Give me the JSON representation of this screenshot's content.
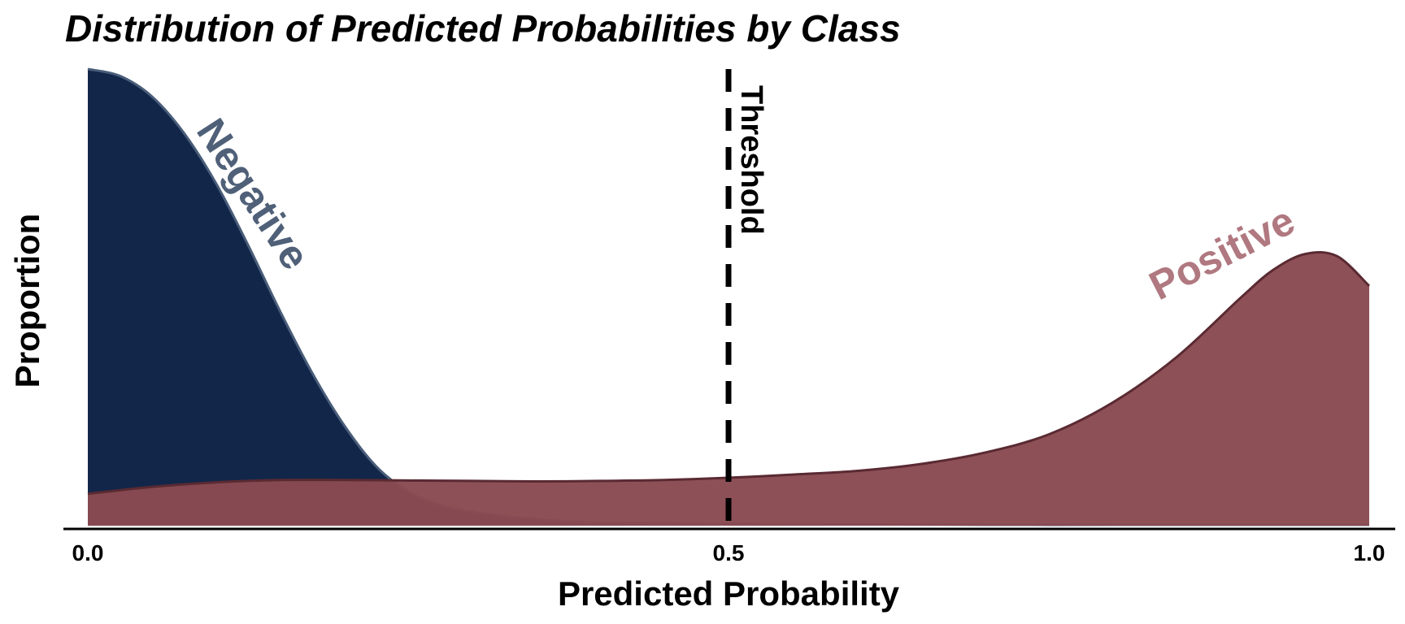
{
  "chart_data": {
    "type": "area",
    "title": "Distribution of Predicted Probabilities by Class",
    "xlabel": "Predicted Probability",
    "ylabel": "Proportion",
    "xlim": [
      0,
      1
    ],
    "ylim": [
      0,
      1
    ],
    "x_ticks": [
      "0.0",
      "0.5",
      "1.0"
    ],
    "grid": false,
    "legend": "none (inline labels)",
    "threshold": {
      "x": 0.5,
      "label": "Threshold",
      "style": "dashed",
      "color": "#000000"
    },
    "series": [
      {
        "name": "Negative",
        "fill_color": "#12264a",
        "label_color": "#4f6078",
        "x": [
          0.0,
          0.025,
          0.05,
          0.075,
          0.1,
          0.125,
          0.15,
          0.175,
          0.2,
          0.225,
          0.25,
          0.275,
          0.3,
          0.35,
          0.4,
          0.5,
          0.6,
          0.7,
          0.8,
          0.9,
          1.0
        ],
        "y": [
          1.0,
          0.985,
          0.94,
          0.86,
          0.75,
          0.615,
          0.47,
          0.335,
          0.22,
          0.13,
          0.075,
          0.045,
          0.03,
          0.014,
          0.007,
          0.004,
          0.003,
          0.002,
          0.002,
          0.002,
          0.002
        ]
      },
      {
        "name": "Positive",
        "fill_color": "#8a4a52",
        "label_color": "#b07880",
        "x": [
          0.0,
          0.05,
          0.1,
          0.15,
          0.2,
          0.25,
          0.3,
          0.35,
          0.4,
          0.45,
          0.5,
          0.55,
          0.6,
          0.65,
          0.7,
          0.75,
          0.8,
          0.85,
          0.9,
          0.925,
          0.95,
          0.975,
          1.0
        ],
        "y": [
          0.07,
          0.085,
          0.095,
          0.1,
          0.1,
          0.099,
          0.098,
          0.097,
          0.098,
          0.1,
          0.105,
          0.112,
          0.12,
          0.135,
          0.16,
          0.2,
          0.27,
          0.37,
          0.5,
          0.56,
          0.595,
          0.59,
          0.525
        ]
      }
    ]
  }
}
